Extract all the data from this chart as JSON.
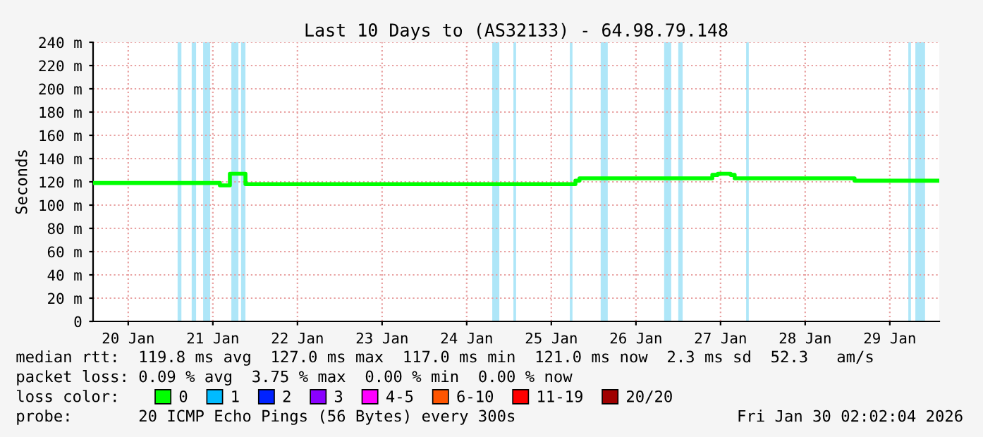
{
  "chart_data": {
    "type": "step",
    "title": "Last 10 Days to (AS32133) - 64.98.79.148",
    "ylabel": "Seconds",
    "xlim": [
      "2026-01-20T02:02",
      "2026-01-30T02:02"
    ],
    "xticks": [
      {
        "value": "2026-01-20T12:00",
        "label": "20 Jan"
      },
      {
        "value": "2026-01-21T12:00",
        "label": "21 Jan"
      },
      {
        "value": "2026-01-22T12:00",
        "label": "22 Jan"
      },
      {
        "value": "2026-01-23T12:00",
        "label": "23 Jan"
      },
      {
        "value": "2026-01-24T12:00",
        "label": "24 Jan"
      },
      {
        "value": "2026-01-25T12:00",
        "label": "25 Jan"
      },
      {
        "value": "2026-01-26T12:00",
        "label": "26 Jan"
      },
      {
        "value": "2026-01-27T12:00",
        "label": "27 Jan"
      },
      {
        "value": "2026-01-28T12:00",
        "label": "28 Jan"
      },
      {
        "value": "2026-01-29T12:00",
        "label": "29 Jan"
      }
    ],
    "ylim": [
      0,
      240
    ],
    "yticks": [
      {
        "value": 0,
        "label": "0"
      },
      {
        "value": 20,
        "label": "20 m"
      },
      {
        "value": 40,
        "label": "40 m"
      },
      {
        "value": 60,
        "label": "60 m"
      },
      {
        "value": 80,
        "label": "80 m"
      },
      {
        "value": 100,
        "label": "100 m"
      },
      {
        "value": 120,
        "label": "120 m"
      },
      {
        "value": 140,
        "label": "140 m"
      },
      {
        "value": 160,
        "label": "160 m"
      },
      {
        "value": 180,
        "label": "180 m"
      },
      {
        "value": 200,
        "label": "200 m"
      },
      {
        "value": 220,
        "label": "220 m"
      },
      {
        "value": 240,
        "label": "240 m"
      }
    ],
    "grid": true,
    "legend": "bottom",
    "series": [
      {
        "color": "#00ff00",
        "x": [
          "2026-01-20T02:02",
          "2026-01-21T14:00",
          "2026-01-21T16:50",
          "2026-01-21T21:15",
          "2026-01-25T18:50",
          "2026-01-25T20:00",
          "2026-01-27T09:40",
          "2026-01-27T11:15",
          "2026-01-27T14:50",
          "2026-01-27T16:00",
          "2026-01-29T02:00",
          "2026-01-30T02:02"
        ],
        "values": [
          119,
          117,
          127,
          118,
          121,
          123,
          126,
          127,
          126,
          123,
          121,
          121
        ]
      },
      {
        "name": "0",
        "color": "#00ff00"
      },
      {
        "name": "1",
        "color": "#00bbff"
      },
      {
        "name": "2",
        "color": "#0022ff"
      },
      {
        "name": "3",
        "color": "#8a00ff"
      },
      {
        "name": "4-5",
        "color": "#ff00ff"
      },
      {
        "name": "6-10",
        "color": "#ff5500"
      },
      {
        "name": "11-19",
        "color": "#ff0000"
      },
      {
        "name": "20/20",
        "color": "#a00000"
      }
    ],
    "bands": [
      {
        "axis": "x",
        "from": "2026-01-21T02:00",
        "to": "2026-01-21T03:05",
        "color": "#aee6f8"
      },
      {
        "axis": "x",
        "from": "2026-01-21T06:00",
        "to": "2026-01-21T07:15",
        "color": "#aee6f8"
      },
      {
        "axis": "x",
        "from": "2026-01-21T09:15",
        "to": "2026-01-21T11:15",
        "color": "#aee6f8"
      },
      {
        "axis": "x",
        "from": "2026-01-21T17:15",
        "to": "2026-01-21T19:15",
        "color": "#aee6f8"
      },
      {
        "axis": "x",
        "from": "2026-01-21T20:00",
        "to": "2026-01-21T21:15",
        "color": "#aee6f8"
      },
      {
        "axis": "x",
        "from": "2026-01-24T19:15",
        "to": "2026-01-24T21:15",
        "color": "#aee6f8"
      },
      {
        "axis": "x",
        "from": "2026-01-25T01:15",
        "to": "2026-01-25T02:00",
        "color": "#aee6f8"
      },
      {
        "axis": "x",
        "from": "2026-01-25T17:15",
        "to": "2026-01-25T18:00",
        "color": "#aee6f8"
      },
      {
        "axis": "x",
        "from": "2026-01-26T02:00",
        "to": "2026-01-26T04:00",
        "color": "#aee6f8"
      },
      {
        "axis": "x",
        "from": "2026-01-26T20:00",
        "to": "2026-01-26T22:00",
        "color": "#aee6f8"
      },
      {
        "axis": "x",
        "from": "2026-01-27T00:00",
        "to": "2026-01-27T01:15",
        "color": "#aee6f8"
      },
      {
        "axis": "x",
        "from": "2026-01-27T19:15",
        "to": "2026-01-27T20:00",
        "color": "#aee6f8"
      },
      {
        "axis": "x",
        "from": "2026-01-29T17:15",
        "to": "2026-01-29T18:00",
        "color": "#aee6f8"
      },
      {
        "axis": "x",
        "from": "2026-01-29T19:15",
        "to": "2026-01-29T22:00",
        "color": "#aee6f8"
      }
    ],
    "annotations": [
      "median rtt:  119.8 ms avg  127.0 ms max  117.0 ms min  121.0 ms now  2.3 ms sd  52.3   am/s",
      "packet loss: 0.09 % avg  3.75 % max  0.00 % min  0.00 % now",
      "loss color:",
      "probe:       20 ICMP Echo Pings (56 Bytes) every 300s",
      "Fri Jan 30 02:02:04 2026"
    ]
  }
}
